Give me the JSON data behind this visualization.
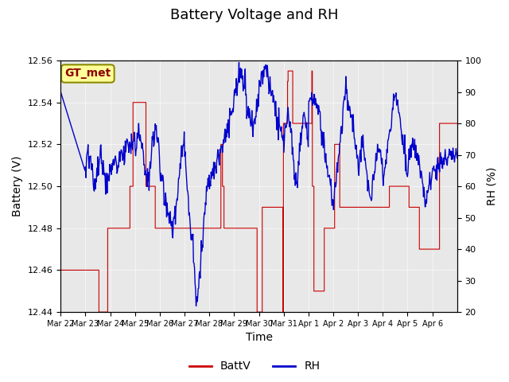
{
  "title": "Battery Voltage and RH",
  "xlabel": "Time",
  "ylabel_left": "Battery (V)",
  "ylabel_right": "RH (%)",
  "annotation": "GT_met",
  "ylim_left": [
    12.44,
    12.56
  ],
  "ylim_right": [
    20,
    100
  ],
  "yticks_left": [
    12.44,
    12.46,
    12.48,
    12.5,
    12.52,
    12.54,
    12.56
  ],
  "yticks_right": [
    20,
    30,
    40,
    50,
    60,
    70,
    80,
    90,
    100
  ],
  "xtick_labels": [
    "Mar 22",
    "Mar 23",
    "Mar 24",
    "Mar 25",
    "Mar 26",
    "Mar 27",
    "Mar 28",
    "Mar 29",
    "Mar 30",
    "Mar 31",
    "Apr 1",
    "Apr 2",
    "Apr 3",
    "Apr 4",
    "Apr 5",
    "Apr 6"
  ],
  "bg_color": "#e8e8e8",
  "fig_color": "#ffffff",
  "batt_color": "#cc0000",
  "rh_color": "#0000cc",
  "legend_batt": "BattV",
  "legend_rh": "RH",
  "title_fontsize": 13,
  "axis_fontsize": 10,
  "tick_fontsize": 8,
  "annotation_fontsize": 10,
  "annotation_color": "#8b0000",
  "annotation_bg": "#ffff99",
  "annotation_border": "#8b8b00"
}
